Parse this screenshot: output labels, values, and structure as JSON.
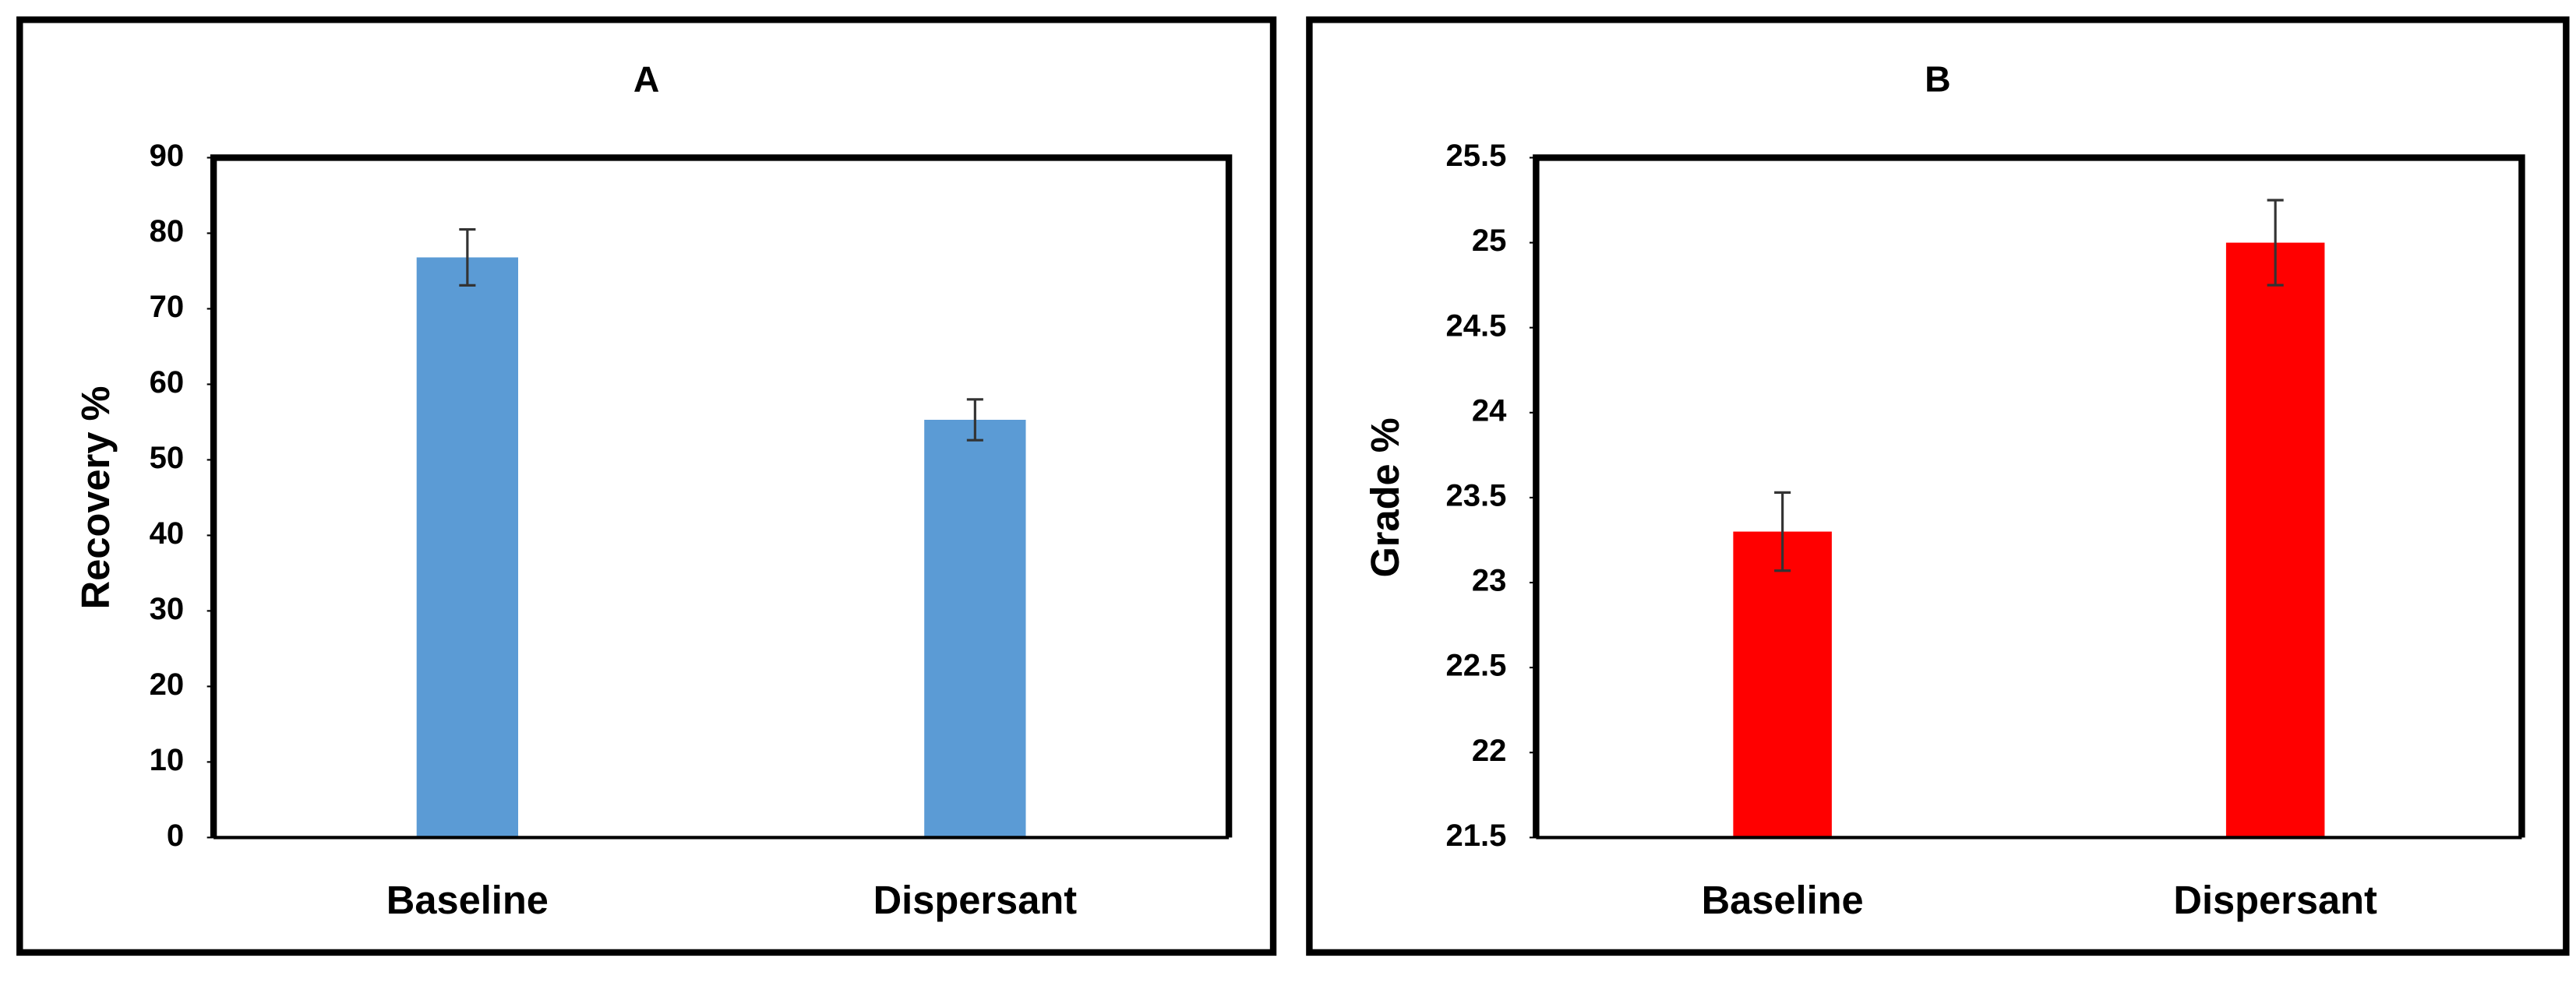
{
  "chart_data": [
    {
      "type": "bar",
      "title": "A",
      "y_label": "Recovery %",
      "categories": [
        "Baseline",
        "Dispersant"
      ],
      "values": [
        76.8,
        55.3
      ],
      "errors": [
        3.7,
        2.7
      ],
      "color": "#5b9bd5",
      "ylim": [
        0,
        90
      ],
      "yticks": [
        0,
        10,
        20,
        30,
        40,
        50,
        60,
        70,
        80,
        90
      ]
    },
    {
      "type": "bar",
      "title": "B",
      "y_label": "Grade %",
      "categories": [
        "Baseline",
        "Dispersant"
      ],
      "values": [
        23.3,
        25.0
      ],
      "errors": [
        0.23,
        0.25
      ],
      "color": "#ff0000",
      "ylim": [
        21.5,
        25.5
      ],
      "yticks": [
        21.5,
        22,
        22.5,
        23,
        23.5,
        24,
        24.5,
        25,
        25.5
      ]
    }
  ]
}
